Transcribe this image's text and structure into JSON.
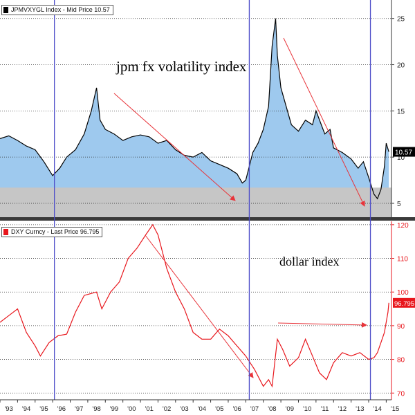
{
  "chart_data": [
    {
      "type": "area",
      "legend": "JPMVXYGL Index - Mid Price 10.57",
      "last_value_label": "10.57",
      "annotation": "jpm fx volatility index",
      "y_ticks": [
        "5",
        "10",
        "15",
        "20",
        "25"
      ],
      "ylim": [
        3.5,
        27
      ],
      "x_range": [
        1993.0,
        2015.3
      ],
      "colors": {
        "line": "#000000",
        "fill": "#9ec9ee",
        "floor": "#c6c6c6",
        "arrow": "#e8343a"
      },
      "floor_value": 6.7,
      "x": [
        1993.0,
        1993.5,
        1994.0,
        1994.5,
        1995.0,
        1995.5,
        1996.0,
        1996.4,
        1996.8,
        1997.3,
        1997.8,
        1998.2,
        1998.5,
        1998.7,
        1999.0,
        1999.5,
        2000.0,
        2000.5,
        2001.0,
        2001.5,
        2002.0,
        2002.5,
        2003.0,
        2003.5,
        2004.0,
        2004.5,
        2005.0,
        2005.5,
        2006.0,
        2006.5,
        2006.8,
        2007.0,
        2007.4,
        2007.7,
        2008.0,
        2008.3,
        2008.5,
        2008.7,
        2008.8,
        2009.0,
        2009.3,
        2009.6,
        2010.0,
        2010.4,
        2010.8,
        2011.0,
        2011.5,
        2011.8,
        2012.0,
        2012.5,
        2013.0,
        2013.4,
        2013.7,
        2014.0,
        2014.3,
        2014.5,
        2014.7,
        2014.9,
        2015.0,
        2015.15
      ],
      "y": [
        12.0,
        12.3,
        11.8,
        11.2,
        10.8,
        9.5,
        8.0,
        8.8,
        10.0,
        10.8,
        12.5,
        15.0,
        17.5,
        14.0,
        13.0,
        12.5,
        11.8,
        12.2,
        12.4,
        12.2,
        11.5,
        11.8,
        10.8,
        10.2,
        10.0,
        10.5,
        9.6,
        9.2,
        8.8,
        8.2,
        7.2,
        7.5,
        10.5,
        11.5,
        13.0,
        15.5,
        22.0,
        25.0,
        21.0,
        17.5,
        15.5,
        13.5,
        12.8,
        14.0,
        13.5,
        15.0,
        12.5,
        13.0,
        11.0,
        10.5,
        9.8,
        8.8,
        9.5,
        7.8,
        6.0,
        5.5,
        6.5,
        9.0,
        11.5,
        10.57
      ]
    },
    {
      "type": "line",
      "legend": "DXY Curncy - Last Price 96.795",
      "last_value_label": "96.795",
      "annotation": "dollar index",
      "y_ticks": [
        "70",
        "80",
        "90",
        "100",
        "110",
        "120"
      ],
      "ylim": [
        68,
        121
      ],
      "x_range": [
        1993.0,
        2015.3
      ],
      "colors": {
        "line": "#e8161c",
        "tick": "#e8161c",
        "label_bg": "#e8161c",
        "arrow": "#e8343a"
      },
      "x": [
        1993.0,
        1993.5,
        1994.0,
        1994.5,
        1995.0,
        1995.3,
        1995.8,
        1996.3,
        1996.8,
        1997.3,
        1997.8,
        1998.5,
        1998.8,
        1999.3,
        1999.8,
        2000.3,
        2000.8,
        2001.3,
        2001.7,
        2002.0,
        2002.5,
        2003.0,
        2003.5,
        2004.0,
        2004.5,
        2005.0,
        2005.5,
        2006.0,
        2006.5,
        2007.0,
        2007.5,
        2008.0,
        2008.3,
        2008.5,
        2008.8,
        2009.1,
        2009.5,
        2010.0,
        2010.4,
        2010.8,
        2011.2,
        2011.6,
        2012.0,
        2012.5,
        2013.0,
        2013.5,
        2014.0,
        2014.3,
        2014.5,
        2014.7,
        2014.9,
        2015.1,
        2015.15
      ],
      "y": [
        91.0,
        93.0,
        95.0,
        88.0,
        84.0,
        81.0,
        85.0,
        87.0,
        87.5,
        94.0,
        99.0,
        100.0,
        95.0,
        100.0,
        103.0,
        110.0,
        113.0,
        117.0,
        120.0,
        117.0,
        107.0,
        100.0,
        95.0,
        88.0,
        86.0,
        86.0,
        89.0,
        87.0,
        84.0,
        81.0,
        77.0,
        72.0,
        74.0,
        72.0,
        86.0,
        83.0,
        78.0,
        80.5,
        86.0,
        81.0,
        76.0,
        74.0,
        79.0,
        82.0,
        81.0,
        82.0,
        80.0,
        80.5,
        82.0,
        85.0,
        88.0,
        94.0,
        96.795
      ]
    }
  ],
  "x_axis": {
    "ticks": [
      "'93",
      "'94",
      "'95",
      "'96",
      "'97",
      "'98",
      "'99",
      "'00",
      "'01",
      "'02",
      "'03",
      "'04",
      "'05",
      "'06",
      "'07",
      "'08",
      "'09",
      "'10",
      "'11",
      "'12",
      "'13",
      "'14",
      "'15"
    ]
  },
  "vertical_markers": [
    1996.1,
    2007.2,
    2014.1
  ]
}
